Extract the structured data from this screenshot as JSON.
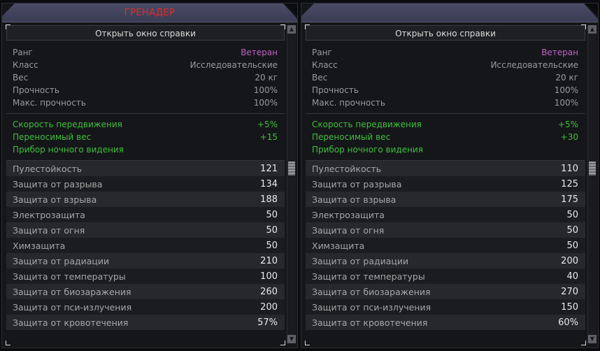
{
  "panels": [
    {
      "title": "ГРЕНАДЕР",
      "help_button": "Открыть окно справки",
      "info": [
        {
          "label": "Ранг",
          "value": "Ветеран"
        },
        {
          "label": "Класс",
          "value": "Исследовательские"
        },
        {
          "label": "Вес",
          "value": "20 кг"
        },
        {
          "label": "Прочность",
          "value": "100%"
        },
        {
          "label": "Макс. прочность",
          "value": "100%"
        }
      ],
      "bonuses": [
        {
          "label": "Скорость передвижения",
          "value": "+5%"
        },
        {
          "label": "Переносимый вес",
          "value": "+15"
        },
        {
          "label": "Прибор ночного видения",
          "value": ""
        }
      ],
      "stats": [
        {
          "label": "Пулестойкость",
          "value": "121"
        },
        {
          "label": "Защита от разрыва",
          "value": "134"
        },
        {
          "label": "Защита от взрыва",
          "value": "188"
        },
        {
          "label": "Электрозащита",
          "value": "50"
        },
        {
          "label": "Защита от огня",
          "value": "50"
        },
        {
          "label": "Химзащита",
          "value": "50"
        },
        {
          "label": "Защита от радиации",
          "value": "210"
        },
        {
          "label": "Защита от температуры",
          "value": "100"
        },
        {
          "label": "Защита от биозаражения",
          "value": "260"
        },
        {
          "label": "Защита от пси-излучения",
          "value": "200"
        },
        {
          "label": "Защита от кровотечения",
          "value": "57%"
        }
      ]
    },
    {
      "title": "",
      "help_button": "Открыть окно справки",
      "info": [
        {
          "label": "Ранг",
          "value": "Ветеран"
        },
        {
          "label": "Класс",
          "value": "Исследовательские"
        },
        {
          "label": "Вес",
          "value": "20 кг"
        },
        {
          "label": "Прочность",
          "value": "100%"
        },
        {
          "label": "Макс. прочность",
          "value": "100%"
        }
      ],
      "bonuses": [
        {
          "label": "Скорость передвижения",
          "value": "+5%"
        },
        {
          "label": "Переносимый вес",
          "value": "+30"
        },
        {
          "label": "Прибор ночного видения",
          "value": ""
        }
      ],
      "stats": [
        {
          "label": "Пулестойкость",
          "value": "110"
        },
        {
          "label": "Защита от разрыва",
          "value": "125"
        },
        {
          "label": "Защита от взрыва",
          "value": "175"
        },
        {
          "label": "Электрозащита",
          "value": "50"
        },
        {
          "label": "Защита от огня",
          "value": "50"
        },
        {
          "label": "Химзащита",
          "value": "50"
        },
        {
          "label": "Защита от радиации",
          "value": "200"
        },
        {
          "label": "Защита от температуры",
          "value": "40"
        },
        {
          "label": "Защита от биозаражения",
          "value": "270"
        },
        {
          "label": "Защита от пси-излучения",
          "value": "150"
        },
        {
          "label": "Защита от кровотечения",
          "value": "60%"
        }
      ]
    }
  ],
  "colors": {
    "rank": "#c061c4",
    "bonus": "#3fbf3f",
    "title": "#e52a2a"
  }
}
